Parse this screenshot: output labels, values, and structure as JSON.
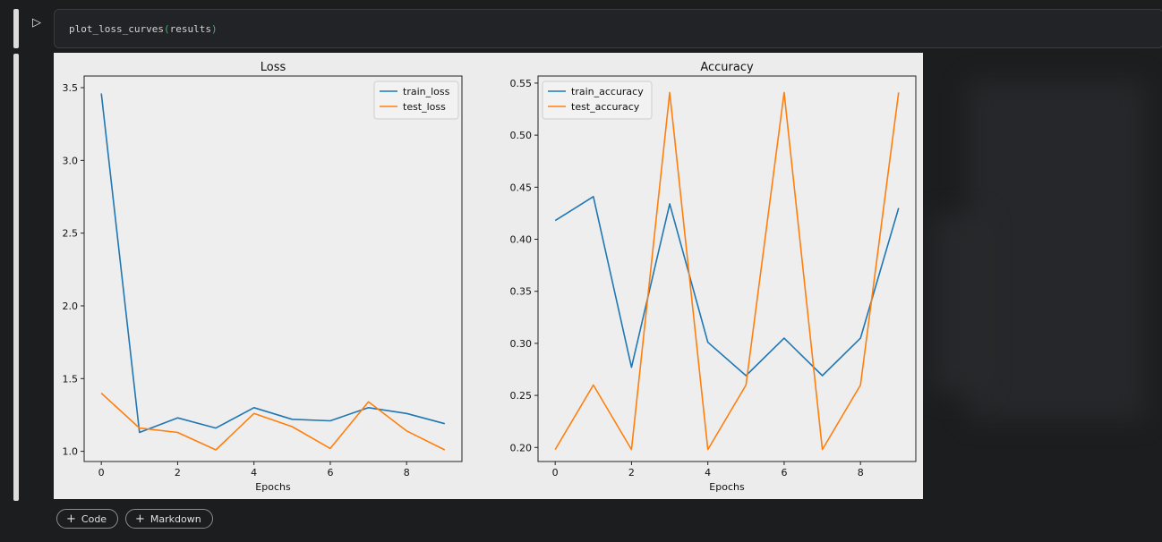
{
  "cell": {
    "function_name": "plot_loss_curves",
    "open_paren": "(",
    "argument": "results",
    "close_paren": ")"
  },
  "toolbar": {
    "run_icon": "play-icon",
    "add_code_label": "Code",
    "add_markdown_label": "Markdown",
    "plus_icon": "plus-icon"
  },
  "colors": {
    "train": "#1f77b4",
    "test": "#ff7f0e",
    "code_paren": "#4caf6e"
  },
  "chart_data": [
    {
      "type": "line",
      "title": "Loss",
      "xlabel": "Epochs",
      "ylabel": "",
      "x": [
        0,
        1,
        2,
        3,
        4,
        5,
        6,
        7,
        8,
        9
      ],
      "xlim": [
        -0.45,
        9.45
      ],
      "ylim": [
        0.93,
        3.58
      ],
      "xticks": [
        0,
        2,
        4,
        6,
        8
      ],
      "yticks": [
        1.0,
        1.5,
        2.0,
        2.5,
        3.0,
        3.5
      ],
      "ytick_labels": [
        "1.0",
        "1.5",
        "2.0",
        "2.5",
        "3.0",
        "3.5"
      ],
      "legend": "upper right",
      "series": [
        {
          "name": "train_loss",
          "color": "#1f77b4",
          "values": [
            3.46,
            1.13,
            1.23,
            1.16,
            1.3,
            1.22,
            1.21,
            1.3,
            1.26,
            1.19
          ]
        },
        {
          "name": "test_loss",
          "color": "#ff7f0e",
          "values": [
            1.4,
            1.16,
            1.13,
            1.01,
            1.26,
            1.17,
            1.02,
            1.34,
            1.14,
            1.01
          ]
        }
      ]
    },
    {
      "type": "line",
      "title": "Accuracy",
      "xlabel": "Epochs",
      "ylabel": "",
      "x": [
        0,
        1,
        2,
        3,
        4,
        5,
        6,
        7,
        8,
        9
      ],
      "xlim": [
        -0.45,
        9.45
      ],
      "ylim": [
        0.1865,
        0.5568
      ],
      "xticks": [
        0,
        2,
        4,
        6,
        8
      ],
      "yticks": [
        0.2,
        0.25,
        0.3,
        0.35,
        0.4,
        0.45,
        0.5,
        0.55
      ],
      "ytick_labels": [
        "0.20",
        "0.25",
        "0.30",
        "0.35",
        "0.40",
        "0.45",
        "0.50",
        "0.55"
      ],
      "legend": "upper left",
      "series": [
        {
          "name": "train_accuracy",
          "color": "#1f77b4",
          "values": [
            0.418,
            0.441,
            0.277,
            0.434,
            0.301,
            0.269,
            0.305,
            0.269,
            0.305,
            0.43
          ]
        },
        {
          "name": "test_accuracy",
          "color": "#ff7f0e",
          "values": [
            0.198,
            0.26,
            0.198,
            0.541,
            0.198,
            0.26,
            0.541,
            0.198,
            0.26,
            0.541
          ]
        }
      ]
    }
  ]
}
